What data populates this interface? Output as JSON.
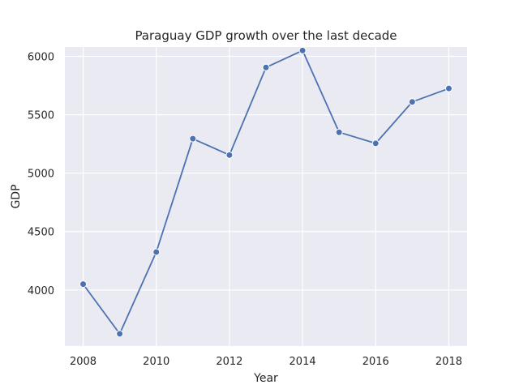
{
  "chart_data": {
    "type": "line",
    "title": "Paraguay GDP growth over the last decade",
    "xlabel": "Year",
    "ylabel": "GDP",
    "x": [
      2008,
      2009,
      2010,
      2011,
      2012,
      2013,
      2014,
      2015,
      2016,
      2017,
      2018
    ],
    "series": [
      {
        "name": "GDP",
        "values": [
          4050,
          3625,
          4325,
          5295,
          5155,
          5905,
          6050,
          5350,
          5255,
          5610,
          5725
        ]
      }
    ],
    "xlim": [
      2007.5,
      2018.5
    ],
    "ylim": [
      3520,
      6080
    ],
    "xticks": [
      2008,
      2010,
      2012,
      2014,
      2016,
      2018
    ],
    "yticks": [
      4000,
      4500,
      5000,
      5500,
      6000
    ],
    "grid": true,
    "legend": "none"
  },
  "colors": {
    "background": "#eaeaf2",
    "grid": "#ffffff",
    "line": "#4c72b0"
  }
}
